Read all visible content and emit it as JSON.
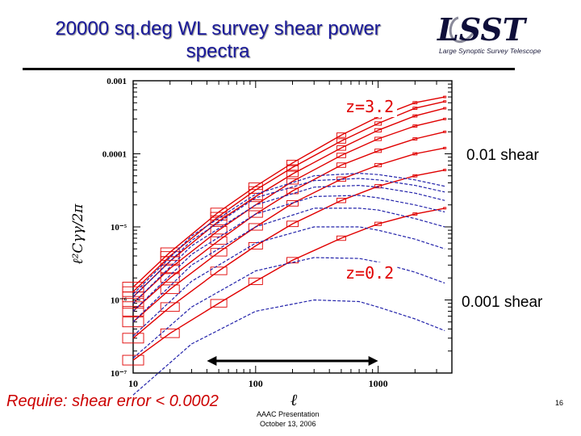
{
  "slide": {
    "title": "20000 sq.deg WL survey shear power spectra",
    "requirement": "Require: shear error < 0.0002",
    "footer_line1": "AAAC Presentation",
    "footer_line2": "October 13, 2006",
    "slide_number": "16"
  },
  "logo": {
    "text": "LSST",
    "subtitle": "Large Synoptic Survey Telescope"
  },
  "colors": {
    "title": "#1a1a9a",
    "signal": "#e00000",
    "shear_curve": "#2222aa",
    "requirement": "#cc0000"
  },
  "chart_data": {
    "type": "line",
    "title": "",
    "xlabel": "ℓ",
    "ylabel": "ℓ²Cγγ/2π",
    "x_scale": "log",
    "y_scale": "log",
    "xlim": [
      10,
      4000
    ],
    "ylim": [
      1e-07,
      0.001
    ],
    "x_ticks": [
      "10",
      "100",
      "1000"
    ],
    "y_ticks": [
      "0.001",
      "0.0001",
      "10⁻⁵",
      "10⁻⁶",
      "10⁻⁷"
    ],
    "annotations": [
      "z=3.2",
      "0.01 shear",
      "z=0.2",
      "0.001 shear"
    ],
    "ell_range_arrow": [
      40,
      1000
    ],
    "series": [
      {
        "style": "solid",
        "x": [
          10,
          20,
          50,
          100,
          200,
          500,
          1000,
          2000,
          3500
        ],
        "values": [
          1.5e-06,
          4.5e-06,
          1.6e-05,
          3.6e-05,
          7.5e-05,
          0.00018,
          0.00032,
          0.0005,
          0.0006
        ]
      },
      {
        "style": "solid",
        "x": [
          10,
          20,
          50,
          100,
          200,
          500,
          1000,
          2000,
          3500
        ],
        "values": [
          1.3e-06,
          4e-06,
          1.4e-05,
          3.2e-05,
          6.5e-05,
          0.00015,
          0.00026,
          0.00042,
          0.00052
        ]
      },
      {
        "style": "solid",
        "x": [
          10,
          20,
          50,
          100,
          200,
          500,
          1000,
          2000,
          3500
        ],
        "values": [
          1.1e-06,
          3.4e-06,
          1.2e-05,
          2.6e-05,
          5.3e-05,
          0.00012,
          0.00021,
          0.00033,
          0.00042
        ]
      },
      {
        "style": "solid",
        "x": [
          10,
          20,
          50,
          100,
          200,
          500,
          1000,
          2000,
          3500
        ],
        "values": [
          9e-07,
          2.7e-06,
          9e-06,
          2e-05,
          4.2e-05,
          9.5e-05,
          0.00016,
          0.00024,
          0.0003
        ]
      },
      {
        "style": "solid",
        "x": [
          10,
          20,
          50,
          100,
          200,
          500,
          1000,
          2000,
          3500
        ],
        "values": [
          7e-07,
          2e-06,
          6.5e-06,
          1.5e-05,
          3.1e-05,
          7e-05,
          0.00011,
          0.00016,
          0.0002
        ]
      },
      {
        "style": "solid",
        "x": [
          10,
          20,
          50,
          100,
          200,
          500,
          1000,
          2000,
          3500
        ],
        "values": [
          5e-07,
          1.4e-06,
          4.5e-06,
          1e-05,
          2.1e-05,
          4.5e-05,
          7e-05,
          0.0001,
          0.00012
        ]
      },
      {
        "style": "solid",
        "x": [
          10,
          20,
          50,
          100,
          200,
          500,
          1000,
          2000,
          3500
        ],
        "values": [
          3e-07,
          8e-07,
          2.5e-06,
          5.5e-06,
          1.1e-05,
          2.3e-05,
          3.6e-05,
          5e-05,
          6e-05
        ]
      },
      {
        "style": "solid",
        "x": [
          10,
          20,
          50,
          100,
          200,
          500,
          1000,
          2000,
          3500
        ],
        "values": [
          1.5e-07,
          3.5e-07,
          9e-07,
          1.8e-06,
          3.5e-06,
          7e-06,
          1.1e-05,
          1.5e-05,
          1.8e-05
        ]
      },
      {
        "style": "dashed",
        "x": [
          10,
          30,
          100,
          300,
          700,
          1000,
          2000,
          3500
        ],
        "values": [
          1.2e-06,
          7.5e-06,
          2.8e-05,
          5e-05,
          5.4e-05,
          5.2e-05,
          4.4e-05,
          3.6e-05
        ]
      },
      {
        "style": "dashed",
        "x": [
          10,
          30,
          100,
          300,
          700,
          1000,
          2000,
          3500
        ],
        "values": [
          1.1e-06,
          6.5e-06,
          2.5e-05,
          4.3e-05,
          4.6e-05,
          4.4e-05,
          3.7e-05,
          3e-05
        ]
      },
      {
        "style": "dashed",
        "x": [
          10,
          30,
          100,
          300,
          700,
          1000,
          2000,
          3500
        ],
        "values": [
          9e-07,
          5.5e-06,
          2e-05,
          3.5e-05,
          3.7e-05,
          3.5e-05,
          2.9e-05,
          2.3e-05
        ]
      },
      {
        "style": "dashed",
        "x": [
          10,
          30,
          100,
          300,
          700,
          1000,
          2000,
          3500
        ],
        "values": [
          7e-07,
          4.2e-06,
          1.5e-05,
          2.6e-05,
          2.7e-05,
          2.5e-05,
          2e-05,
          1.6e-05
        ]
      },
      {
        "style": "dashed",
        "x": [
          10,
          30,
          100,
          300,
          700,
          1000,
          2000,
          3500
        ],
        "values": [
          5e-07,
          3e-06,
          1e-05,
          1.8e-05,
          1.8e-05,
          1.7e-05,
          1.3e-05,
          1e-05
        ]
      },
      {
        "style": "dashed",
        "x": [
          10,
          30,
          100,
          300,
          700,
          1000,
          2000,
          3500
        ],
        "values": [
          3.2e-07,
          1.8e-06,
          6e-06,
          1e-05,
          1e-05,
          9e-06,
          6.8e-06,
          5e-06
        ]
      },
      {
        "style": "dashed",
        "x": [
          10,
          30,
          100,
          300,
          700,
          1000,
          2000,
          3500
        ],
        "values": [
          1.6e-07,
          8e-07,
          2.5e-06,
          3.8e-06,
          3.7e-06,
          3.3e-06,
          2.4e-06,
          1.7e-06
        ]
      },
      {
        "style": "dashed",
        "x": [
          10,
          30,
          100,
          300,
          700,
          1000,
          2000,
          3500
        ],
        "values": [
          5e-08,
          2.5e-07,
          7e-07,
          1e-06,
          9.5e-07,
          8e-07,
          5.5e-07,
          3.8e-07
        ]
      }
    ]
  }
}
